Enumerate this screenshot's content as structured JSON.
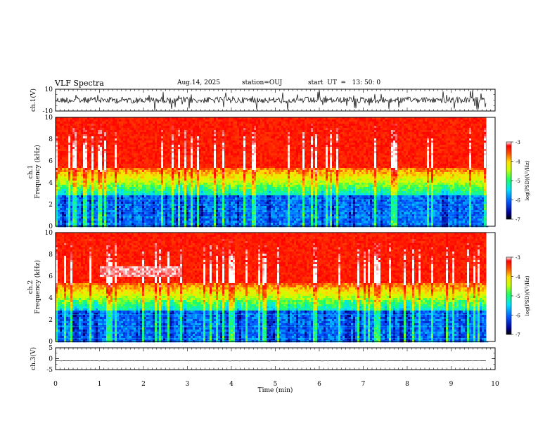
{
  "header": {
    "title": "VLF Spectra",
    "date": "Aug.14, 2025",
    "station": "station=OUJ",
    "start": "start  UT  =   13: 50: 0"
  },
  "chart_data": [
    {
      "type": "line",
      "id": "ch1-waveform",
      "ylabel": "ch.1(V)",
      "ylim": [
        -10,
        10
      ],
      "yticks": [
        "10",
        "-10"
      ],
      "xlim": [
        0,
        10
      ],
      "data_extent_min": 9.8,
      "mean_level": 0
    },
    {
      "type": "heatmap",
      "id": "ch1-spectrogram",
      "ylabel": "ch.1\nFrequency (kHz)",
      "ylim": [
        0,
        10
      ],
      "yticks": [
        "0",
        "2",
        "4",
        "6",
        "8",
        "10"
      ],
      "xlim": [
        0,
        10
      ],
      "data_extent_min": 9.8,
      "colorbar": {
        "label": "log(PSD)(V²/Hz)",
        "range": [
          -7,
          -3
        ],
        "ticks": [
          "-3",
          "-4",
          "-5",
          "-6",
          "-7"
        ]
      }
    },
    {
      "type": "heatmap",
      "id": "ch2-spectrogram",
      "ylabel": "ch.2\nFrequency (kHz)",
      "ylim": [
        0,
        10
      ],
      "yticks": [
        "0",
        "2",
        "4",
        "6",
        "8",
        "10"
      ],
      "xlim": [
        0,
        10
      ],
      "data_extent_min": 9.8,
      "colorbar": {
        "label": "log(PSD)(V²/Hz)",
        "range": [
          -7,
          -3
        ],
        "ticks": [
          "-3",
          "-4",
          "-5",
          "-6",
          "-7"
        ]
      }
    },
    {
      "type": "line",
      "id": "ch3-waveform",
      "ylabel": "ch.3(V)",
      "ylim": [
        -5,
        5
      ],
      "yticks": [
        "5",
        "0",
        "-5"
      ],
      "xlim": [
        0,
        10
      ],
      "data_extent_min": 9.8,
      "mean_level": -1
    }
  ],
  "xaxis": {
    "label": "Time  (min)",
    "ticks": [
      "0",
      "1",
      "2",
      "3",
      "4",
      "5",
      "6",
      "7",
      "8",
      "9",
      "10"
    ]
  }
}
